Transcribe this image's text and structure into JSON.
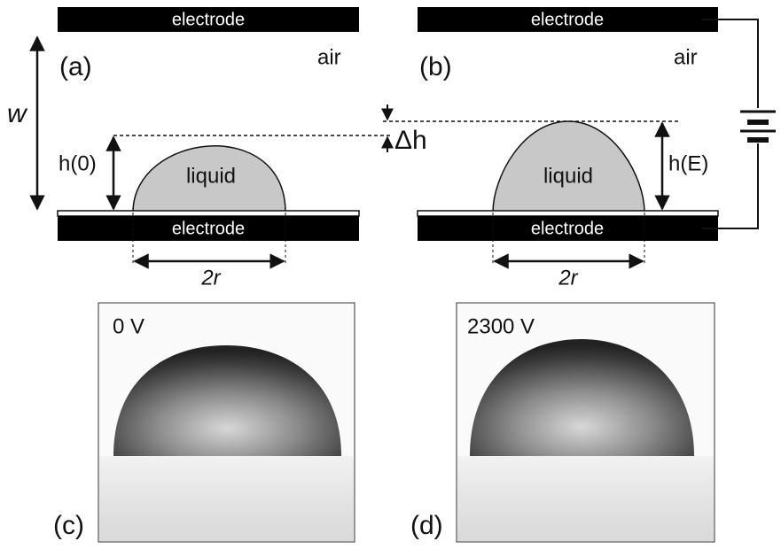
{
  "panel_a": {
    "label": "(a)",
    "top_electrode": "electrode",
    "bottom_electrode": "electrode",
    "medium": "air",
    "gap": "w",
    "height": "h(0)",
    "drop": "liquid",
    "base": "2r"
  },
  "panel_b": {
    "label": "(b)",
    "top_electrode": "electrode",
    "bottom_electrode": "electrode",
    "medium": "air",
    "height": "h(E)",
    "drop": "liquid",
    "base": "2r"
  },
  "delta": "Δh",
  "panel_c": {
    "label": "(c)",
    "voltage": "0 V"
  },
  "panel_d": {
    "label": "(d)",
    "voltage": "2300 V"
  }
}
